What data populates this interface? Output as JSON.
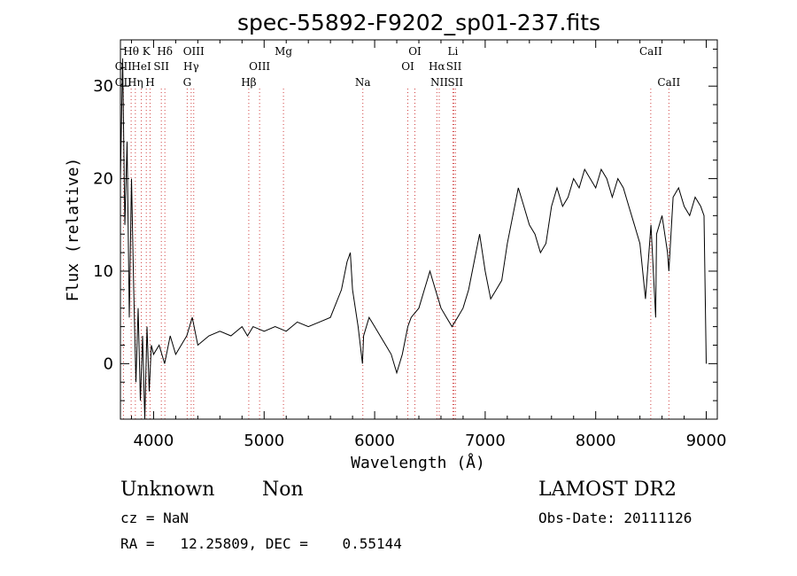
{
  "chart_data": {
    "type": "line",
    "title": "spec-55892-F9202_sp01-237.fits",
    "xlabel": "Wavelength (Å)",
    "ylabel": "Flux (relative)",
    "xlim": [
      3700,
      9100
    ],
    "ylim": [
      -6,
      35
    ],
    "x_ticks": [
      4000,
      5000,
      6000,
      7000,
      8000,
      9000
    ],
    "y_ticks": [
      0,
      10,
      20,
      30
    ],
    "grid": false,
    "legend": "none",
    "series": [
      {
        "x": [
          3700,
          3720,
          3740,
          3760,
          3780,
          3800,
          3820,
          3840,
          3860,
          3880,
          3900,
          3920,
          3940,
          3960,
          3980,
          4000,
          4050,
          4100,
          4150,
          4200,
          4250,
          4300,
          4350,
          4400,
          4500,
          4600,
          4700,
          4800,
          4850,
          4900,
          5000,
          5100,
          5200,
          5300,
          5400,
          5500,
          5600,
          5700,
          5750,
          5780,
          5800,
          5850,
          5890,
          5900,
          5950,
          6000,
          6050,
          6100,
          6150,
          6200,
          6250,
          6300,
          6330,
          6400,
          6450,
          6500,
          6550,
          6600,
          6650,
          6700,
          6750,
          6800,
          6850,
          6900,
          6950,
          7000,
          7050,
          7100,
          7150,
          7200,
          7250,
          7300,
          7350,
          7400,
          7450,
          7500,
          7550,
          7600,
          7650,
          7700,
          7750,
          7800,
          7850,
          7900,
          7950,
          8000,
          8050,
          8100,
          8150,
          8200,
          8250,
          8300,
          8350,
          8400,
          8450,
          8500,
          8542,
          8550,
          8600,
          8650,
          8662,
          8700,
          8750,
          8800,
          8850,
          8900,
          8950,
          8980,
          9000
        ],
        "y": [
          20,
          33,
          15,
          24,
          5,
          20,
          8,
          -2,
          6,
          -4,
          3,
          -6,
          4,
          -3,
          2,
          1,
          2,
          0,
          3,
          1,
          2,
          3,
          5,
          2,
          3,
          3.5,
          3,
          4,
          3,
          4,
          3.5,
          4,
          3.5,
          4.5,
          4,
          4.5,
          5,
          8,
          11,
          12,
          8,
          4,
          0,
          3,
          5,
          4,
          3,
          2,
          1,
          -1,
          1,
          4,
          5,
          6,
          8,
          10,
          8,
          6,
          5,
          4,
          5,
          6,
          8,
          11,
          14,
          10,
          7,
          8,
          9,
          13,
          16,
          19,
          17,
          15,
          14,
          12,
          13,
          17,
          19,
          17,
          18,
          20,
          19,
          21,
          20,
          19,
          21,
          20,
          18,
          20,
          19,
          17,
          15,
          13,
          7,
          15,
          5,
          14,
          16,
          12,
          10,
          18,
          19,
          17,
          16,
          18,
          17,
          16,
          0
        ]
      }
    ],
    "line_labels": [
      {
        "text": "H&theta;",
        "x": 3797,
        "row": 1
      },
      {
        "text": "K",
        "x": 3934,
        "row": 1
      },
      {
        "text": "H&delta;",
        "x": 4102,
        "row": 1
      },
      {
        "text": "OIII",
        "x": 4363,
        "row": 1
      },
      {
        "text": "Mg",
        "x": 5175,
        "row": 1
      },
      {
        "text": "OI",
        "x": 6364,
        "row": 1
      },
      {
        "text": "Li",
        "x": 6708,
        "row": 1
      },
      {
        "text": "CaII",
        "x": 8498,
        "row": 1
      },
      {
        "text": "OII",
        "x": 3727,
        "row": 2
      },
      {
        "text": "HeI",
        "x": 3889,
        "row": 2
      },
      {
        "text": "SII",
        "x": 4070,
        "row": 2
      },
      {
        "text": "H&gamma;",
        "x": 4340,
        "row": 2
      },
      {
        "text": "OIII",
        "x": 4959,
        "row": 2
      },
      {
        "text": "OI",
        "x": 6300,
        "row": 2
      },
      {
        "text": "H&alpha;",
        "x": 6563,
        "row": 2
      },
      {
        "text": "SII",
        "x": 6717,
        "row": 2
      },
      {
        "text": "OII",
        "x": 3727,
        "row": 3
      },
      {
        "text": "H&eta;",
        "x": 3835,
        "row": 3
      },
      {
        "text": "H",
        "x": 3968,
        "row": 3
      },
      {
        "text": "G",
        "x": 4304,
        "row": 3
      },
      {
        "text": "H&beta;",
        "x": 4861,
        "row": 3
      },
      {
        "text": "Na",
        "x": 5893,
        "row": 3
      },
      {
        "text": "NII",
        "x": 6584,
        "row": 3
      },
      {
        "text": "SII",
        "x": 6731,
        "row": 3
      },
      {
        "text": "CaII",
        "x": 8662,
        "row": 3
      }
    ]
  },
  "info": {
    "class_label": "Unknown",
    "subclass_label": "Non",
    "cz_text": "cz = NaN",
    "coords_text": "RA =   12.25809, DEC =    0.55144",
    "survey_label": "LAMOST DR2",
    "obs_date_text": "Obs-Date: 20111126"
  }
}
